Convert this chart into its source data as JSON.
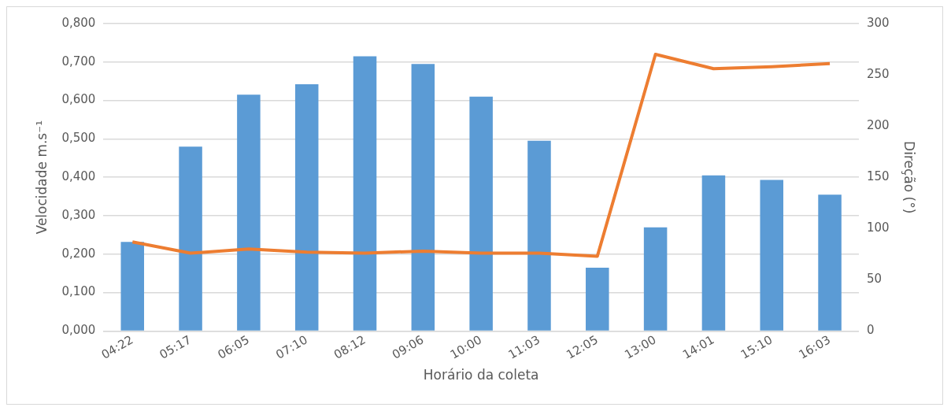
{
  "chart_data": {
    "type": "bar",
    "xlabel": "Horário da coleta",
    "ylabel": "Velocidade m.s⁻¹",
    "y2label": "Direção (°)",
    "categories": [
      "04:22",
      "05:17",
      "06:05",
      "07:10",
      "08:12",
      "09:06",
      "10:00",
      "11:03",
      "12:05",
      "13:00",
      "14:01",
      "15:10",
      "16:03"
    ],
    "series": [
      {
        "color": "#5b9bd5",
        "values": [
          0.232,
          0.48,
          0.615,
          0.642,
          0.715,
          0.695,
          0.61,
          0.495,
          0.165,
          0.27,
          0.405,
          0.393,
          0.355
        ]
      },
      {
        "type": "line",
        "axis": "y2",
        "color": "#ed7d31",
        "marker": "none",
        "values": [
          87,
          76,
          80,
          77,
          76,
          78,
          76,
          76,
          73,
          270,
          256,
          258,
          261
        ]
      }
    ],
    "ylim": [
      0,
      0.8
    ],
    "yticks": [
      {
        "value": 0,
        "label": "0,000"
      },
      {
        "value": 0.1,
        "label": "0,100"
      },
      {
        "value": 0.2,
        "label": "0,200"
      },
      {
        "value": 0.3,
        "label": "0,300"
      },
      {
        "value": 0.4,
        "label": "0,400"
      },
      {
        "value": 0.5,
        "label": "0,500"
      },
      {
        "value": 0.6,
        "label": "0,600"
      },
      {
        "value": 0.7,
        "label": "0,700"
      },
      {
        "value": 0.8,
        "label": "0,800"
      }
    ],
    "y2lim": [
      0,
      300
    ],
    "y2ticks": [
      0,
      50,
      100,
      150,
      200,
      250,
      300
    ],
    "grid": "y",
    "legend": false
  }
}
